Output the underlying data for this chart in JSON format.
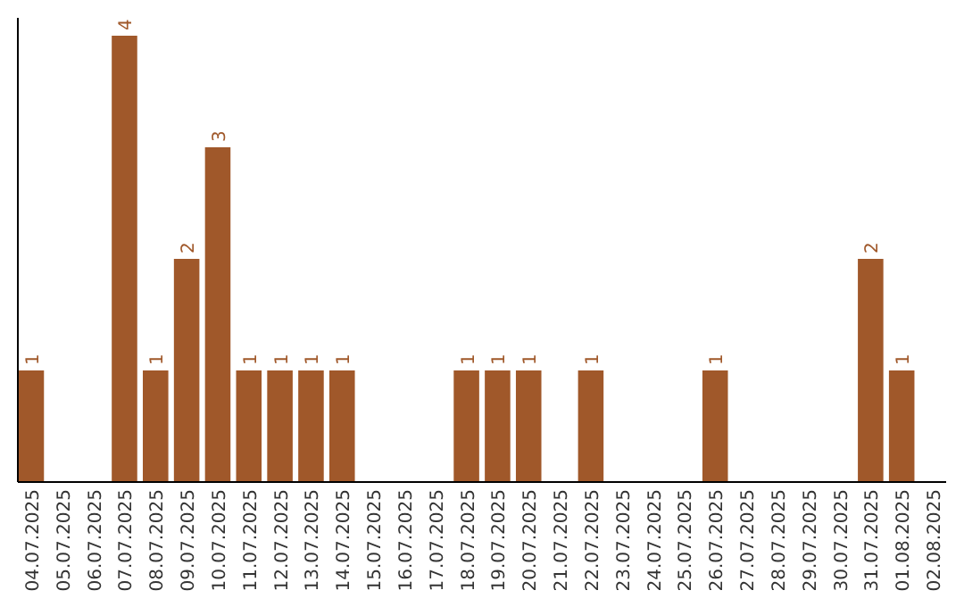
{
  "chart_data": {
    "type": "bar",
    "relative": false,
    "categories": [
      "04.07.2025",
      "05.07.2025",
      "06.07.2025",
      "07.07.2025",
      "08.07.2025",
      "09.07.2025",
      "10.07.2025",
      "11.07.2025",
      "12.07.2025",
      "13.07.2025",
      "14.07.2025",
      "15.07.2025",
      "16.07.2025",
      "17.07.2025",
      "18.07.2025",
      "19.07.2025",
      "20.07.2025",
      "21.07.2025",
      "22.07.2025",
      "23.07.2025",
      "24.07.2025",
      "25.07.2025",
      "26.07.2025",
      "27.07.2025",
      "28.07.2025",
      "29.07.2025",
      "30.07.2025",
      "31.07.2025",
      "01.08.2025",
      "02.08.2025"
    ],
    "values": [
      1,
      0,
      0,
      4,
      1,
      2,
      3,
      1,
      1,
      1,
      1,
      0,
      0,
      0,
      1,
      1,
      1,
      0,
      1,
      0,
      0,
      0,
      1,
      0,
      0,
      0,
      0,
      2,
      1,
      0
    ],
    "value_labels": [
      "1",
      null,
      null,
      "4",
      "1",
      "2",
      "3",
      "1",
      "1",
      "1",
      "1",
      null,
      null,
      null,
      "1",
      "1",
      "1",
      null,
      "1",
      null,
      null,
      null,
      "1",
      null,
      null,
      null,
      null,
      "2",
      "1",
      null
    ],
    "color": "#a0582a"
  }
}
